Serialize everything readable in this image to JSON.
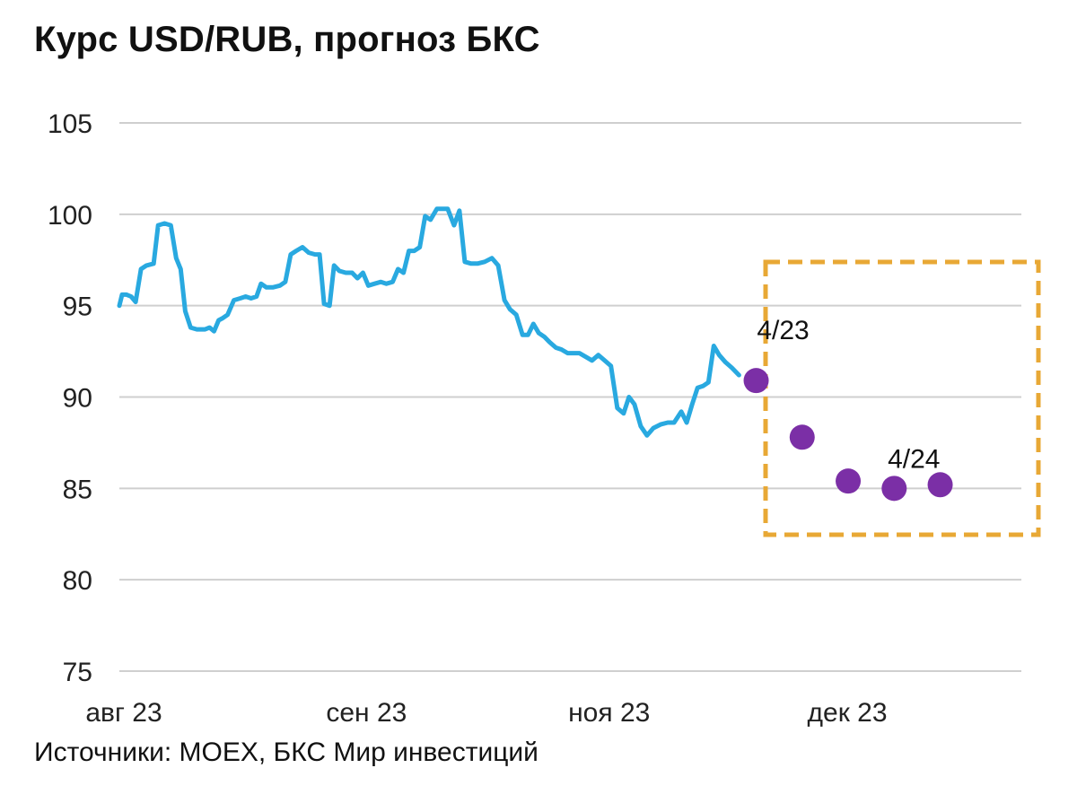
{
  "chart_data": {
    "type": "line",
    "title": "Курс USD/RUB, прогноз БКС",
    "source": "Источники: MOEX, БКС Мир инвестиций",
    "ylim": [
      75,
      105
    ],
    "y_ticks": [
      105,
      100,
      95,
      90,
      85,
      80,
      75
    ],
    "x_ticks": [
      "авг 23",
      "сен 23",
      "ноя 23",
      "дек 23"
    ],
    "grid": true,
    "series": [
      {
        "kind": "history",
        "color": "#29a9e0",
        "values": [
          95.0,
          95.6,
          95.6,
          95.5,
          95.2,
          97.0,
          97.2,
          97.3,
          99.4,
          99.5,
          99.4,
          97.6,
          97.0,
          94.7,
          93.8,
          93.7,
          93.7,
          93.8,
          93.6,
          94.2,
          94.3,
          94.5,
          95.3,
          95.4,
          95.5,
          95.4,
          95.5,
          96.2,
          96.0,
          96.0,
          96.1,
          96.3,
          97.8,
          98.0,
          98.2,
          97.9,
          97.8,
          97.8,
          95.1,
          95.0,
          97.2,
          96.9,
          96.8,
          96.8,
          96.5,
          96.8,
          96.1,
          96.2,
          96.3,
          96.2,
          96.3,
          97.0,
          96.8,
          98.0,
          98.0,
          98.2,
          99.9,
          99.7,
          100.3,
          100.3,
          100.3,
          99.4,
          100.2,
          97.4,
          97.3,
          97.3,
          97.4,
          97.6,
          97.2,
          95.3,
          94.8,
          94.5,
          93.4,
          93.4,
          94.0,
          93.5,
          93.3,
          93.0,
          92.7,
          92.6,
          92.4,
          92.4,
          92.4,
          92.2,
          92.0,
          92.3,
          92.0,
          91.7,
          89.4,
          89.1,
          90.0,
          89.6,
          88.4,
          87.9,
          88.3,
          88.5,
          88.6,
          88.6,
          89.2,
          88.6,
          89.6,
          90.5,
          90.6,
          90.8,
          92.8,
          92.3,
          91.9,
          91.6,
          91.2
        ],
        "x_pos": [
          0.0,
          0.003,
          0.008,
          0.013,
          0.018,
          0.024,
          0.03,
          0.038,
          0.043,
          0.05,
          0.057,
          0.063,
          0.068,
          0.073,
          0.079,
          0.086,
          0.095,
          0.1,
          0.105,
          0.11,
          0.114,
          0.12,
          0.127,
          0.134,
          0.14,
          0.146,
          0.152,
          0.157,
          0.163,
          0.17,
          0.178,
          0.184,
          0.19,
          0.196,
          0.203,
          0.21,
          0.217,
          0.222,
          0.227,
          0.233,
          0.238,
          0.244,
          0.251,
          0.258,
          0.264,
          0.27,
          0.276,
          0.283,
          0.29,
          0.296,
          0.303,
          0.309,
          0.315,
          0.321,
          0.327,
          0.333,
          0.339,
          0.345,
          0.352,
          0.358,
          0.364,
          0.371,
          0.377,
          0.383,
          0.39,
          0.397,
          0.405,
          0.413,
          0.42,
          0.427,
          0.433,
          0.44,
          0.447,
          0.453,
          0.459,
          0.465,
          0.471,
          0.477,
          0.484,
          0.49,
          0.497,
          0.503,
          0.51,
          0.517,
          0.524,
          0.531,
          0.538,
          0.545,
          0.552,
          0.559,
          0.565,
          0.571,
          0.578,
          0.585,
          0.592,
          0.6,
          0.608,
          0.615,
          0.623,
          0.629,
          0.635,
          0.641,
          0.647,
          0.653,
          0.659,
          0.665,
          0.672,
          0.679,
          0.687
        ]
      },
      {
        "kind": "forecast",
        "color": "#7b2fa6",
        "x_pos": [
          0.706,
          0.757,
          0.808,
          0.859,
          0.91
        ],
        "values": [
          90.9,
          87.8,
          85.4,
          85.0,
          85.2
        ]
      }
    ],
    "annotations": [
      {
        "text": "4/23",
        "near_point": 0
      },
      {
        "text": "4/24",
        "near_point": 3
      }
    ],
    "highlight_box": {
      "color": "#e8a835"
    }
  }
}
